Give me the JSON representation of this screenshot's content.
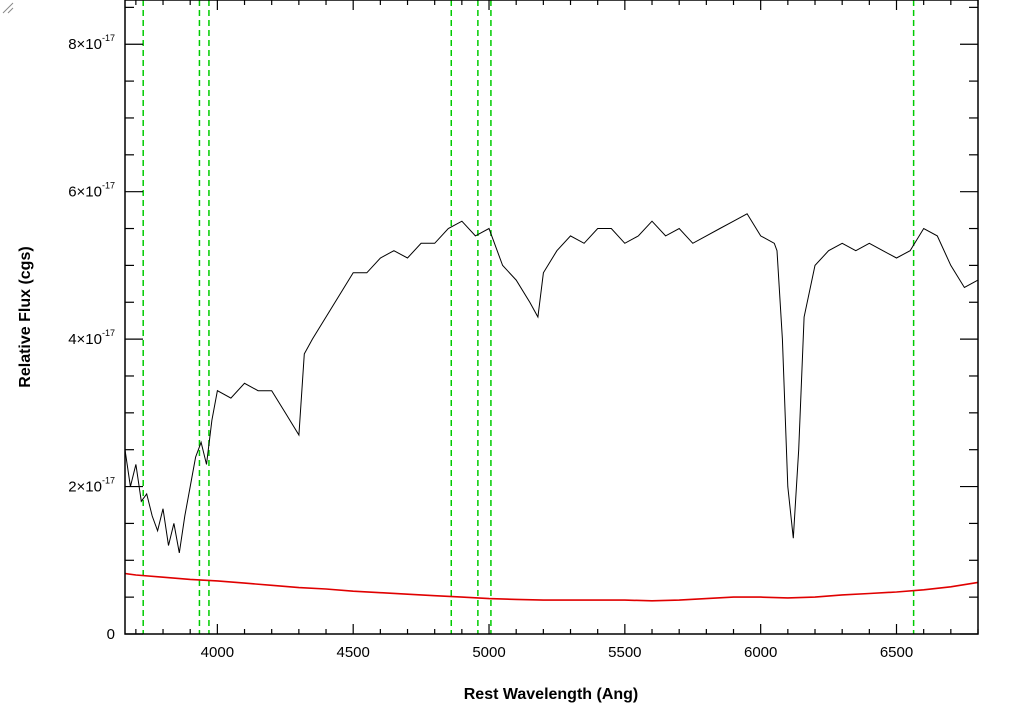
{
  "chart_data": {
    "type": "line",
    "title": "",
    "xlabel": "Rest Wavelength (Ang)",
    "ylabel": "Relative Flux (cgs)",
    "xlim": [
      3660,
      6800
    ],
    "ylim": [
      0,
      8.6e-17
    ],
    "x_ticks": [
      {
        "value": 4000,
        "label": "4000"
      },
      {
        "value": 4500,
        "label": "4500"
      },
      {
        "value": 5000,
        "label": "5000"
      },
      {
        "value": 5500,
        "label": "5500"
      },
      {
        "value": 6000,
        "label": "6000"
      },
      {
        "value": 6500,
        "label": "6500"
      }
    ],
    "y_ticks": [
      {
        "value": 0,
        "mantissa": "0",
        "exponent": ""
      },
      {
        "value": 2e-17,
        "mantissa": "2×10",
        "exponent": "-17"
      },
      {
        "value": 4e-17,
        "mantissa": "4×10",
        "exponent": "-17"
      },
      {
        "value": 6e-17,
        "mantissa": "6×10",
        "exponent": "-17"
      },
      {
        "value": 8e-17,
        "mantissa": "8×10",
        "exponent": "-17"
      }
    ],
    "grid": false,
    "flux_unit": 1e-17,
    "series": [
      {
        "color": "#000000",
        "x": [
          3660,
          3680,
          3700,
          3720,
          3740,
          3760,
          3780,
          3800,
          3820,
          3840,
          3860,
          3880,
          3900,
          3920,
          3940,
          3960,
          3980,
          4000,
          4050,
          4100,
          4150,
          4200,
          4250,
          4300,
          4320,
          4350,
          4400,
          4450,
          4500,
          4550,
          4600,
          4650,
          4700,
          4750,
          4800,
          4850,
          4900,
          4950,
          5000,
          5050,
          5100,
          5150,
          5180,
          5200,
          5250,
          5300,
          5350,
          5400,
          5450,
          5500,
          5550,
          5600,
          5650,
          5700,
          5750,
          5800,
          5850,
          5900,
          5950,
          6000,
          6050,
          6060,
          6080,
          6100,
          6120,
          6140,
          6160,
          6200,
          6250,
          6300,
          6350,
          6400,
          6450,
          6500,
          6550,
          6600,
          6650,
          6700,
          6750,
          6800
        ],
        "y": [
          2.5,
          2.0,
          2.3,
          1.8,
          1.9,
          1.6,
          1.4,
          1.7,
          1.2,
          1.5,
          1.1,
          1.6,
          2.0,
          2.4,
          2.6,
          2.3,
          2.9,
          3.3,
          3.2,
          3.4,
          3.3,
          3.3,
          3.0,
          2.7,
          3.8,
          4.0,
          4.3,
          4.6,
          4.9,
          4.9,
          5.1,
          5.2,
          5.1,
          5.3,
          5.3,
          5.5,
          5.6,
          5.4,
          5.5,
          5.0,
          4.8,
          4.5,
          4.3,
          4.9,
          5.2,
          5.4,
          5.3,
          5.5,
          5.5,
          5.3,
          5.4,
          5.6,
          5.4,
          5.5,
          5.3,
          5.4,
          5.5,
          5.6,
          5.7,
          5.4,
          5.3,
          5.2,
          4.0,
          2.0,
          1.3,
          2.5,
          4.3,
          5.0,
          5.2,
          5.3,
          5.2,
          5.3,
          5.2,
          5.1,
          5.2,
          5.5,
          5.4,
          5.0,
          4.7,
          4.8
        ]
      },
      {
        "color": "#e00000",
        "x": [
          3660,
          3700,
          3800,
          3900,
          4000,
          4100,
          4200,
          4300,
          4400,
          4500,
          4600,
          4700,
          4800,
          4900,
          5000,
          5100,
          5200,
          5300,
          5400,
          5500,
          5600,
          5700,
          5800,
          5900,
          6000,
          6100,
          6200,
          6300,
          6400,
          6500,
          6600,
          6700,
          6800
        ],
        "y": [
          0.82,
          0.8,
          0.77,
          0.74,
          0.72,
          0.69,
          0.66,
          0.63,
          0.61,
          0.58,
          0.56,
          0.54,
          0.52,
          0.5,
          0.48,
          0.47,
          0.46,
          0.46,
          0.46,
          0.46,
          0.45,
          0.46,
          0.48,
          0.5,
          0.5,
          0.49,
          0.5,
          0.53,
          0.55,
          0.57,
          0.6,
          0.64,
          0.7
        ]
      }
    ],
    "vertical_lines": {
      "color": "#00cc00",
      "style": "dashed",
      "x": [
        3727,
        3934,
        3969,
        4861,
        4959,
        5007,
        6563
      ]
    }
  }
}
